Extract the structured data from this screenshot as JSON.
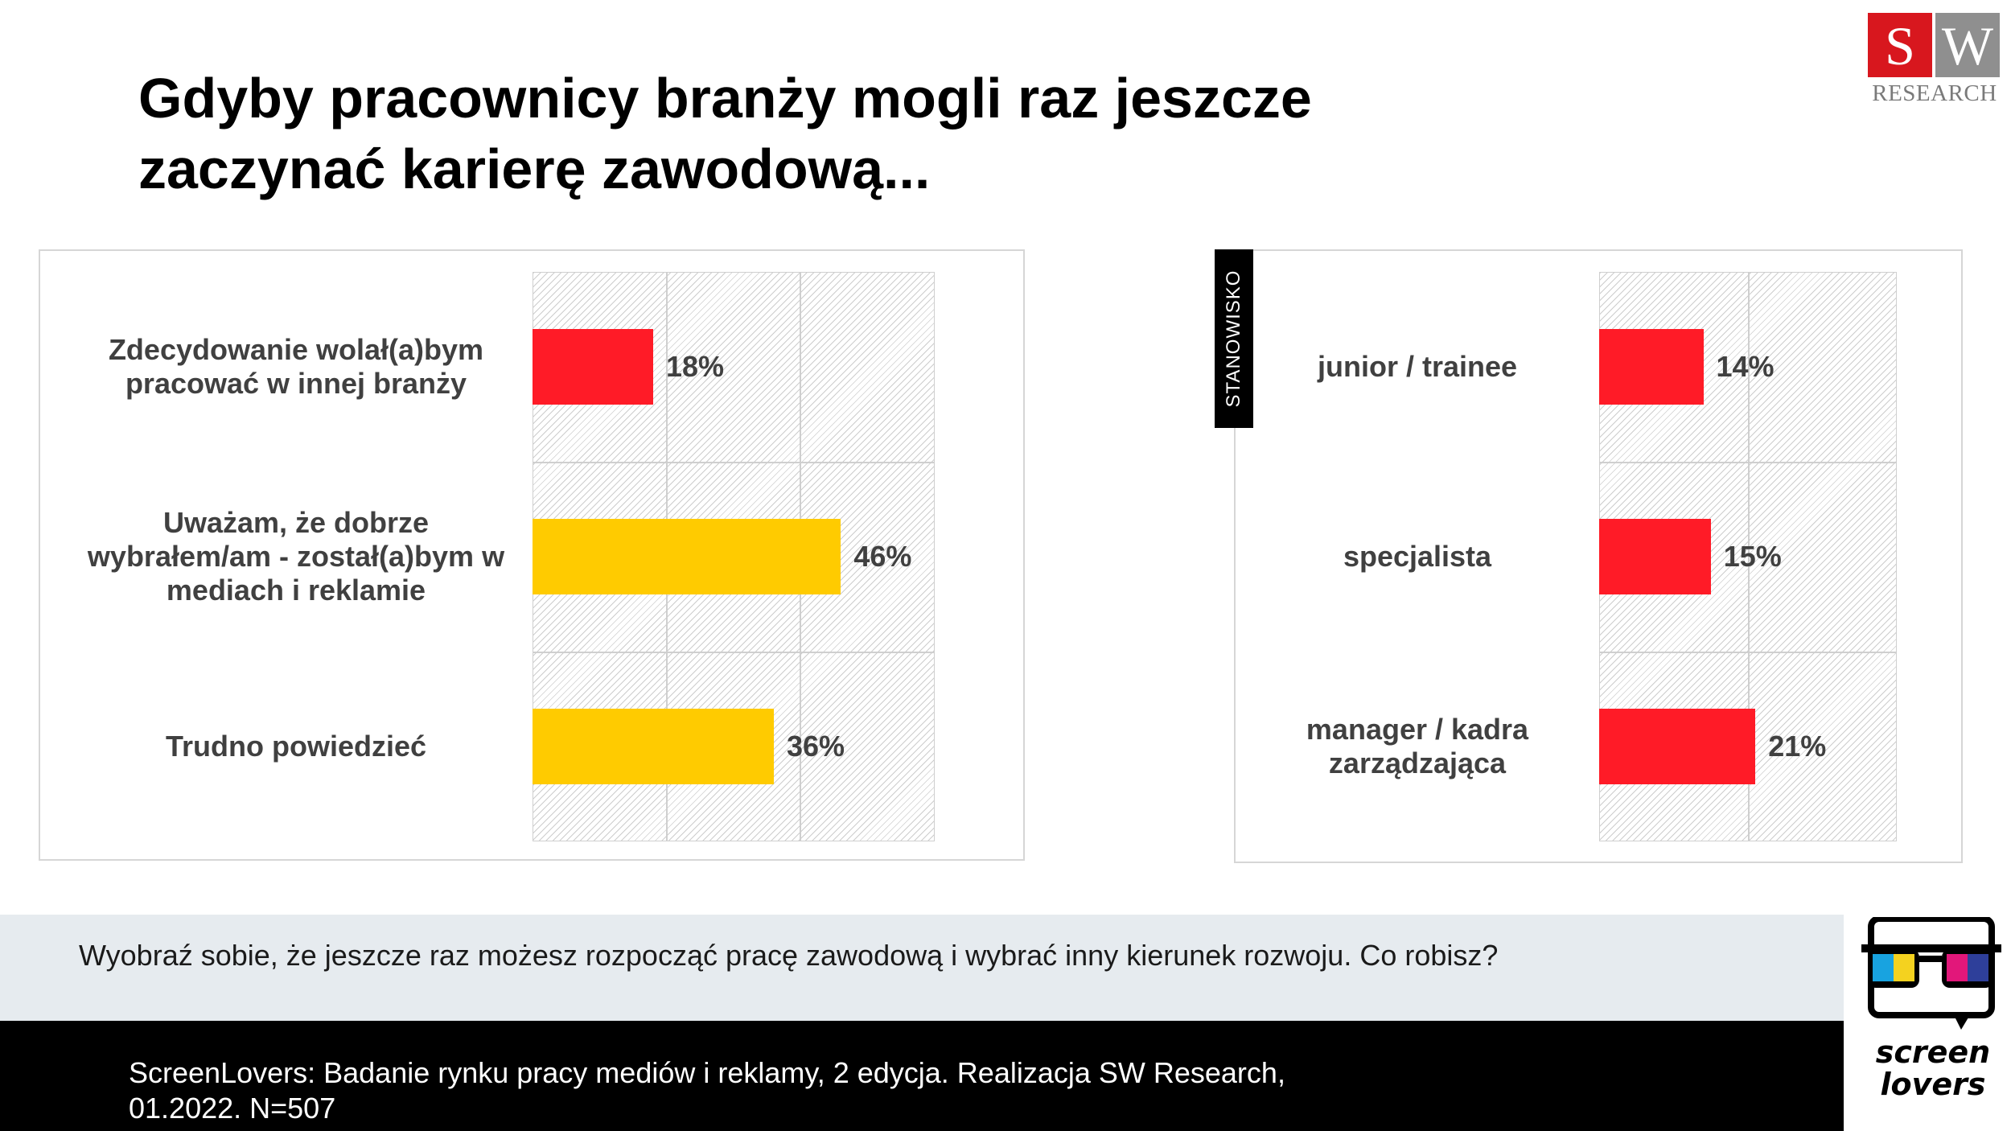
{
  "title": {
    "line1": "Gdyby pracownicy branży mogli raz jeszcze",
    "line2": "zaczynać karierę zawodową..."
  },
  "logo": {
    "s": "S",
    "w": "W",
    "research": "RESEARCH",
    "brand2": "screen lovers"
  },
  "question": "Wyobraź sobie, że jeszcze raz możesz rozpocząć pracę zawodową i wybrać inny kierunek rozwoju. Co robisz?",
  "footer": {
    "line1": "ScreenLovers: Badanie rynku pracy mediów i reklamy, 2 edycja. Realizacja SW Research,",
    "line2": "01.2022. N=507"
  },
  "colors": {
    "red": "#ff1b27",
    "yellow": "#ffcb00",
    "text": "#404040"
  },
  "chart_data": [
    {
      "type": "bar",
      "orientation": "horizontal",
      "categories": [
        "Zdecydowanie wolał(a)bym pracować w innej branży",
        "Uważam, że dobrze wybrałem/am - został(a)bym w mediach i reklamie",
        "Trudno powiedzieć"
      ],
      "values": [
        18,
        46,
        36
      ],
      "labels": [
        "18%",
        "46%",
        "36%"
      ],
      "bar_colors": [
        "#ff1b27",
        "#ffcb00",
        "#ffcb00"
      ],
      "xlim": [
        0,
        60
      ],
      "grid": true
    },
    {
      "type": "bar",
      "orientation": "horizontal",
      "group_label": "STANOWISKO",
      "categories": [
        "junior / trainee",
        "specjalista",
        "manager / kadra zarządzająca"
      ],
      "values": [
        14,
        15,
        21
      ],
      "labels": [
        "14%",
        "15%",
        "21%"
      ],
      "bar_colors": [
        "#ff1b27",
        "#ff1b27",
        "#ff1b27"
      ],
      "xlim": [
        0,
        40
      ],
      "grid": true
    }
  ]
}
